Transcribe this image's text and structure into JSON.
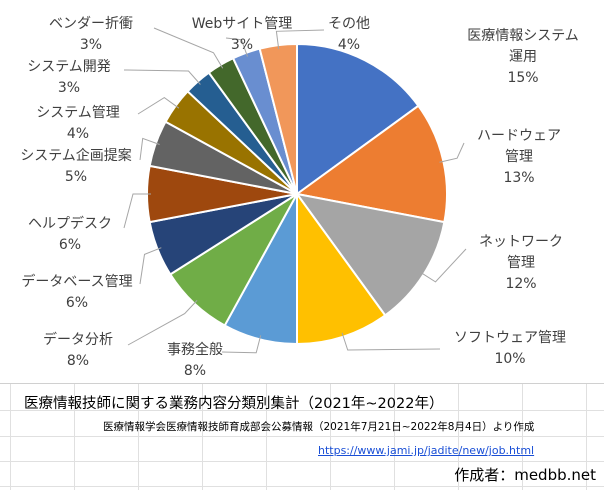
{
  "chart_data": {
    "type": "pie",
    "title": "",
    "slices": [
      {
        "name": "医療情報システム運用",
        "value": 15,
        "label_lines": [
          "医療情報システム",
          "運用",
          "15%"
        ],
        "color": "#4472C4"
      },
      {
        "name": "ハードウェア管理",
        "value": 13,
        "label_lines": [
          "ハードウェア",
          "管理",
          "13%"
        ],
        "color": "#ED7D31"
      },
      {
        "name": "ネットワーク管理",
        "value": 12,
        "label_lines": [
          "ネットワーク",
          "管理",
          "12%"
        ],
        "color": "#A5A5A5"
      },
      {
        "name": "ソフトウェア管理",
        "value": 10,
        "label_lines": [
          "ソフトウェア管理",
          "10%"
        ],
        "color": "#FFC000"
      },
      {
        "name": "事務全般",
        "value": 8,
        "label_lines": [
          "事務全般",
          "8%"
        ],
        "color": "#5B9BD5"
      },
      {
        "name": "データ分析",
        "value": 8,
        "label_lines": [
          "データ分析",
          "8%"
        ],
        "color": "#70AD47"
      },
      {
        "name": "データベース管理",
        "value": 6,
        "label_lines": [
          "データベース管理",
          "6%"
        ],
        "color": "#264478"
      },
      {
        "name": "ヘルプデスク",
        "value": 6,
        "label_lines": [
          "ヘルプデスク",
          "6%"
        ],
        "color": "#9E480E"
      },
      {
        "name": "システム企画提案",
        "value": 5,
        "label_lines": [
          "システム企画提案",
          "5%"
        ],
        "color": "#636363"
      },
      {
        "name": "システム管理",
        "value": 4,
        "label_lines": [
          "システム管理",
          "4%"
        ],
        "color": "#997300"
      },
      {
        "name": "システム開発",
        "value": 3,
        "label_lines": [
          "システム開発",
          "3%"
        ],
        "color": "#255E91"
      },
      {
        "name": "ベンダー折衝",
        "value": 3,
        "label_lines": [
          "ベンダー折衝",
          "3%"
        ],
        "color": "#43682B"
      },
      {
        "name": "Webサイト管理",
        "value": 3,
        "label_lines": [
          "Webサイト管理",
          "3%"
        ],
        "color": "#698ED0"
      },
      {
        "name": "その他",
        "value": 4,
        "label_lines": [
          "その他",
          "4%"
        ],
        "color": "#F1975A"
      }
    ]
  },
  "caption": {
    "title": "医療情報技師に関する業務内容分類別集計（2021年~2022年）",
    "source": "医療情報学会医療情報技師育成部会公募情報（2021年7月21日~2022年8月4日）より作成",
    "link": "https://www.jami.jp/jadite/new/job.html",
    "author": "作成者：medbb.net"
  }
}
